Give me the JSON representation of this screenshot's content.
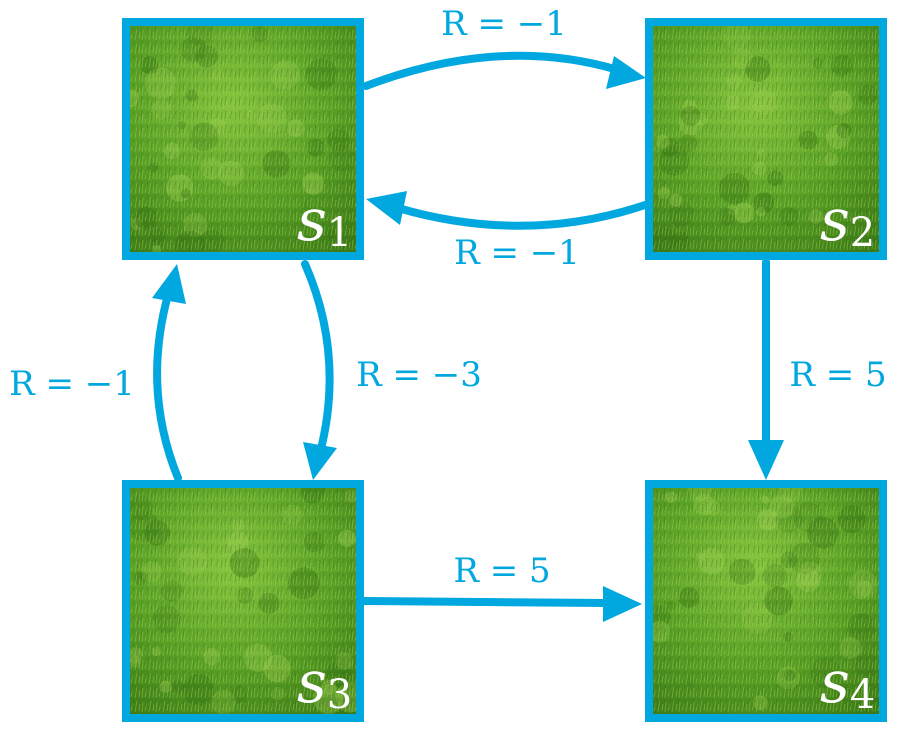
{
  "diagram": {
    "accent": "#00a8df",
    "grass_base": "#5da52a",
    "state_label_color": "#ffffff",
    "states": [
      {
        "id": "s1",
        "name": "s",
        "sub": "1"
      },
      {
        "id": "s2",
        "name": "s",
        "sub": "2"
      },
      {
        "id": "s3",
        "name": "s",
        "sub": "3"
      },
      {
        "id": "s4",
        "name": "s",
        "sub": "4"
      }
    ],
    "edges": [
      {
        "from": "s1",
        "to": "s2",
        "label": "R = −1"
      },
      {
        "from": "s2",
        "to": "s1",
        "label": "R = −1"
      },
      {
        "from": "s1",
        "to": "s3",
        "label": "R = −3"
      },
      {
        "from": "s3",
        "to": "s1",
        "label": "R = −1"
      },
      {
        "from": "s2",
        "to": "s4",
        "label": "R = 5"
      },
      {
        "from": "s3",
        "to": "s4",
        "label": "R = 5"
      }
    ]
  }
}
